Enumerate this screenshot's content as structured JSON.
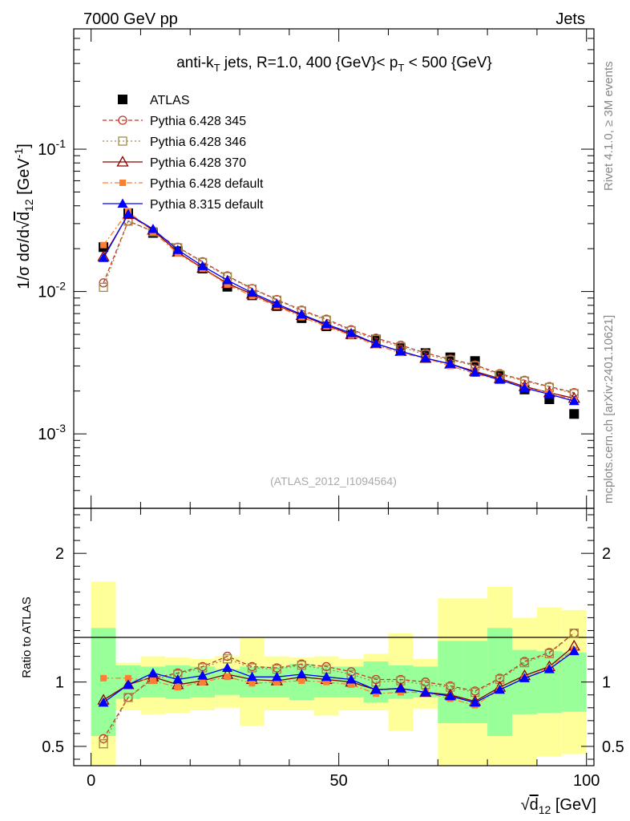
{
  "header": {
    "left": "7000 GeV pp",
    "right": "Jets",
    "side_top": "Rivet 4.1.0, ≥ 3M events",
    "side_bottom": "mcplots.cern.ch [arXiv:2401.10621]"
  },
  "chart_data": [
    {
      "type": "scatter",
      "panel": "main",
      "title": "anti-k_T jets, R=1.0, 400 {GeV}< p_T < 500 {GeV}",
      "title_parts": {
        "pre": "anti-k",
        "sub1": "T",
        "mid": " jets, R=1.0, 400 {GeV}< p",
        "sub2": "T",
        "post": " < 500 {GeV}"
      },
      "ylabel": "1/σ dσ/d√d12 [GeV⁻¹]",
      "ylabel_parts": {
        "pre": "1/σ dσ/d",
        "root": "√",
        "d": "d",
        "sub": "12",
        "unit": " [GeV",
        "sup": "-1",
        "close": "]"
      },
      "yscale": "log",
      "ylim": [
        0.0003,
        0.7
      ],
      "xlim": [
        -3.5,
        101.5
      ],
      "ytick_labels": [
        {
          "mantissa": "10",
          "exp": "-3",
          "value": 0.001
        },
        {
          "mantissa": "10",
          "exp": "-2",
          "value": 0.01
        },
        {
          "mantissa": "10",
          "exp": "-1",
          "value": 0.1
        }
      ],
      "watermark": "(ATLAS_2012_I1094564)",
      "legend_position": "top-left",
      "x": [
        2.5,
        7.5,
        12.5,
        17.5,
        22.5,
        27.5,
        32.5,
        37.5,
        42.5,
        47.5,
        52.5,
        57.5,
        62.5,
        67.5,
        72.5,
        77.5,
        82.5,
        87.5,
        92.5,
        97.5
      ],
      "series": [
        {
          "name": "ATLAS",
          "color": "#000000",
          "marker": "square-filled",
          "line": "none",
          "values": [
            0.0205,
            0.0355,
            0.0258,
            0.0192,
            0.0145,
            0.0108,
            0.0094,
            0.0079,
            0.0065,
            0.0057,
            0.005,
            0.0046,
            0.004,
            0.0037,
            0.00345,
            0.00325,
            0.00255,
            0.00205,
            0.00175,
            0.00138
          ]
        },
        {
          "name": "Pythia 6.428 345",
          "color": "#c0392b",
          "marker": "circle-open",
          "line": "dashed",
          "values": [
            0.0115,
            0.0313,
            0.0265,
            0.0205,
            0.0162,
            0.0129,
            0.0105,
            0.0088,
            0.0074,
            0.0064,
            0.0054,
            0.0047,
            0.0042,
            0.0037,
            0.00335,
            0.00305,
            0.00265,
            0.00238,
            0.00215,
            0.00195
          ]
        },
        {
          "name": "Pythia 6.428 346",
          "color": "#a08a45",
          "marker": "square-open",
          "line": "dotted",
          "values": [
            0.0107,
            0.0312,
            0.0263,
            0.0203,
            0.016,
            0.0127,
            0.0104,
            0.0087,
            0.0073,
            0.0063,
            0.0053,
            0.0046,
            0.0041,
            0.0036,
            0.0033,
            0.003,
            0.0026,
            0.00235,
            0.00212,
            0.00192
          ]
        },
        {
          "name": "Pythia 6.428 370",
          "color": "#8b0000",
          "marker": "triangle-open",
          "line": "solid",
          "values": [
            0.0176,
            0.0348,
            0.027,
            0.0189,
            0.0146,
            0.0114,
            0.0096,
            0.008,
            0.0068,
            0.0058,
            0.005,
            0.0043,
            0.0038,
            0.0034,
            0.0031,
            0.00275,
            0.00245,
            0.00215,
            0.00195,
            0.00178
          ]
        },
        {
          "name": "Pythia 6.428 default",
          "color": "#ff7f32",
          "marker": "square-filled-small",
          "line": "dashdot",
          "values": [
            0.0212,
            0.0366,
            0.0262,
            0.0185,
            0.0145,
            0.0112,
            0.0093,
            0.0079,
            0.0066,
            0.0057,
            0.0049,
            0.0042,
            0.0037,
            0.0034,
            0.003,
            0.00265,
            0.0024,
            0.00212,
            0.00195,
            0.00172
          ]
        },
        {
          "name": "Pythia 8.315 default",
          "color": "#0000ff",
          "marker": "triangle-filled",
          "line": "solid",
          "values": [
            0.0172,
            0.035,
            0.0275,
            0.0196,
            0.0151,
            0.012,
            0.0098,
            0.0082,
            0.0069,
            0.0059,
            0.0051,
            0.0043,
            0.0038,
            0.0034,
            0.0031,
            0.0027,
            0.0024,
            0.0021,
            0.0019,
            0.0017
          ]
        }
      ]
    },
    {
      "type": "scatter",
      "panel": "ratio",
      "ylabel": "Ratio to ATLAS",
      "ylim": [
        0.35,
        2.35
      ],
      "xlim": [
        -3.5,
        101.5
      ],
      "yticks": [
        0.5,
        1,
        2
      ],
      "ytick_labels": [
        "0.5",
        "1",
        "2"
      ],
      "xticks": [
        0,
        50,
        100
      ],
      "xtick_labels": [
        "0",
        "50",
        "100"
      ],
      "xlabel": "√d12 [GeV]",
      "xlabel_parts": {
        "root": "√",
        "d": "d",
        "sub": "12",
        "unit": " [GeV]"
      },
      "bin_edges": [
        0,
        5,
        10,
        15,
        20,
        25,
        30,
        35,
        40,
        45,
        50,
        55,
        60,
        65,
        70,
        75,
        80,
        85,
        90,
        95,
        100
      ],
      "band_inner": {
        "color": "#99ff99",
        "lo": [
          0.58,
          0.87,
          0.88,
          0.87,
          0.88,
          0.9,
          0.88,
          0.88,
          0.86,
          0.88,
          0.88,
          0.84,
          0.87,
          0.88,
          0.68,
          0.68,
          0.58,
          0.75,
          0.76,
          0.77
        ],
        "hi": [
          1.42,
          1.13,
          1.12,
          1.13,
          1.12,
          1.1,
          1.12,
          1.12,
          1.14,
          1.12,
          1.12,
          1.16,
          1.13,
          1.12,
          1.32,
          1.32,
          1.42,
          1.25,
          1.24,
          1.23
        ]
      },
      "band_outer": {
        "color": "#ffff99",
        "lo": [
          0.35,
          0.78,
          0.75,
          0.76,
          0.78,
          0.8,
          0.66,
          0.78,
          0.78,
          0.74,
          0.78,
          0.78,
          0.62,
          0.79,
          0.35,
          0.35,
          0.35,
          0.35,
          0.42,
          0.44
        ],
        "hi": [
          1.78,
          1.15,
          1.2,
          1.19,
          1.18,
          1.2,
          1.34,
          1.2,
          1.19,
          1.2,
          1.18,
          1.22,
          1.38,
          1.18,
          1.65,
          1.65,
          1.74,
          1.5,
          1.58,
          1.56
        ]
      },
      "x": [
        2.5,
        7.5,
        12.5,
        17.5,
        22.5,
        27.5,
        32.5,
        37.5,
        42.5,
        47.5,
        52.5,
        57.5,
        62.5,
        67.5,
        72.5,
        77.5,
        82.5,
        87.5,
        92.5,
        97.5
      ],
      "series": [
        {
          "name": "Pythia 6.428 345",
          "color": "#c0392b",
          "marker": "circle-open",
          "line": "dashed",
          "values": [
            0.56,
            0.88,
            1.03,
            1.07,
            1.12,
            1.2,
            1.12,
            1.11,
            1.14,
            1.12,
            1.08,
            1.02,
            1.02,
            1.0,
            0.97,
            0.93,
            1.03,
            1.16,
            1.23,
            1.38
          ]
        },
        {
          "name": "Pythia 6.428 346",
          "color": "#a08a45",
          "marker": "square-open",
          "line": "dotted",
          "values": [
            0.52,
            0.88,
            1.02,
            1.06,
            1.11,
            1.18,
            1.11,
            1.1,
            1.13,
            1.1,
            1.06,
            1.0,
            1.01,
            0.98,
            0.96,
            0.92,
            1.02,
            1.15,
            1.22,
            1.38
          ]
        },
        {
          "name": "Pythia 6.428 370",
          "color": "#8b0000",
          "marker": "triangle-open",
          "line": "solid",
          "values": [
            0.86,
            0.98,
            1.04,
            0.98,
            1.01,
            1.06,
            1.02,
            1.01,
            1.04,
            1.02,
            1.0,
            0.94,
            0.95,
            0.92,
            0.9,
            0.85,
            0.96,
            1.05,
            1.12,
            1.28
          ]
        },
        {
          "name": "Pythia 6.428 default",
          "color": "#ff7f32",
          "marker": "square-filled-small",
          "line": "dashdot",
          "values": [
            1.03,
            1.03,
            1.01,
            0.96,
            1.0,
            1.04,
            0.99,
            1.0,
            1.01,
            1.0,
            0.98,
            0.91,
            0.92,
            0.92,
            0.87,
            0.82,
            0.94,
            1.03,
            1.11,
            1.25
          ]
        },
        {
          "name": "Pythia 8.315 default",
          "color": "#0000ff",
          "marker": "triangle-filled",
          "line": "solid",
          "values": [
            0.84,
            0.98,
            1.07,
            1.02,
            1.05,
            1.11,
            1.04,
            1.04,
            1.06,
            1.04,
            1.02,
            0.94,
            0.95,
            0.92,
            0.89,
            0.84,
            0.94,
            1.03,
            1.1,
            1.24
          ]
        }
      ]
    }
  ]
}
